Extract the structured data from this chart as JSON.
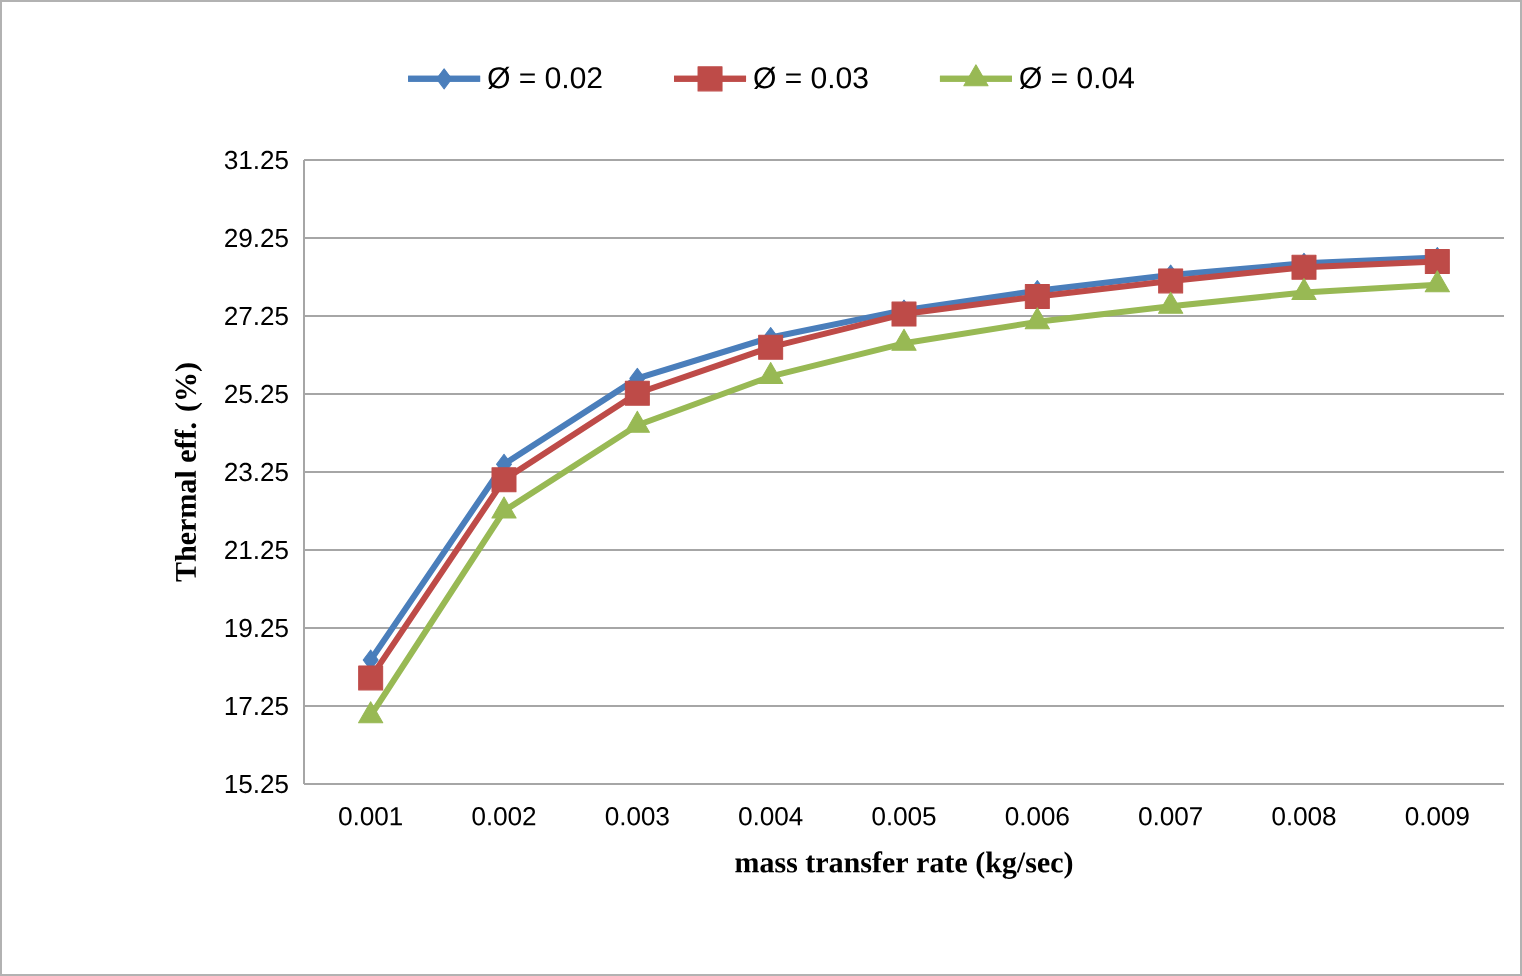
{
  "chart_data": {
    "type": "line",
    "xlabel": "mass transfer rate (kg/sec)",
    "ylabel": "Thermal eff. (%)",
    "categories": [
      "0.001",
      "0.002",
      "0.003",
      "0.004",
      "0.005",
      "0.006",
      "0.007",
      "0.008",
      "0.009"
    ],
    "series": [
      {
        "name": "Ø = 0.02",
        "color": "#4a7ebb",
        "marker": "diamond",
        "values": [
          18.43,
          23.45,
          25.65,
          26.7,
          27.4,
          27.9,
          28.3,
          28.6,
          28.75
        ]
      },
      {
        "name": "Ø = 0.03",
        "color": "#be4b48",
        "marker": "square",
        "values": [
          17.97,
          23.05,
          25.27,
          26.45,
          27.3,
          27.75,
          28.15,
          28.5,
          28.65
        ]
      },
      {
        "name": "Ø = 0.04",
        "color": "#98b954",
        "marker": "triangle",
        "values": [
          17.0,
          22.25,
          24.45,
          25.7,
          26.55,
          27.1,
          27.5,
          27.85,
          28.05
        ]
      }
    ],
    "ylim": [
      15.25,
      31.25
    ],
    "yticks": [
      15.25,
      17.25,
      19.25,
      21.25,
      23.25,
      25.25,
      27.25,
      29.25,
      31.25
    ],
    "grid": "y",
    "legend": "top",
    "line_style": "solid"
  }
}
